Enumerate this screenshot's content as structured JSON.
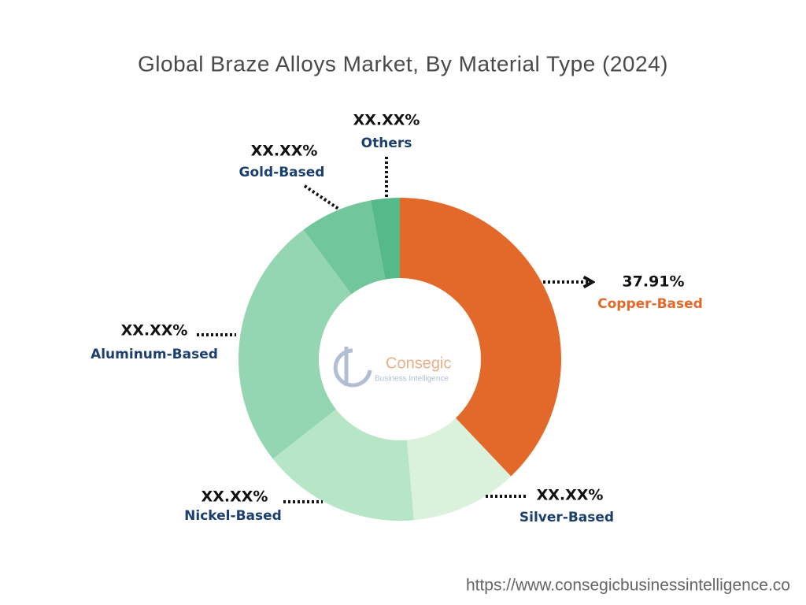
{
  "chart_data": {
    "type": "donut",
    "title": "Global Braze Alloys Market, By Material Type (2024)",
    "categories": [
      "Copper-Based",
      "Silver-Based",
      "Nickel-Based",
      "Aluminum-Based",
      "Gold-Based",
      "Others"
    ],
    "values": [
      37.91,
      10.7,
      15.8,
      25.4,
      7.3,
      2.89
    ],
    "value_labels": [
      "37.91%",
      "XX.XX%",
      "XX.XX%",
      "XX.XX%",
      "XX.XX%",
      "XX.XX%"
    ],
    "colors": [
      "#e3692a",
      "#daf2dc",
      "#b6e6c6",
      "#94d6b1",
      "#72c69b",
      "#56b98a"
    ],
    "name_colors": [
      "#e3692a",
      "#1b3f6e",
      "#1b3f6e",
      "#1b3f6e",
      "#1b3f6e",
      "#1b3f6e"
    ]
  },
  "watermark": {
    "name": "Consegic",
    "tagline": "Business Intelligence"
  },
  "footer": "https://www.consegicbusinessintelligence.co"
}
